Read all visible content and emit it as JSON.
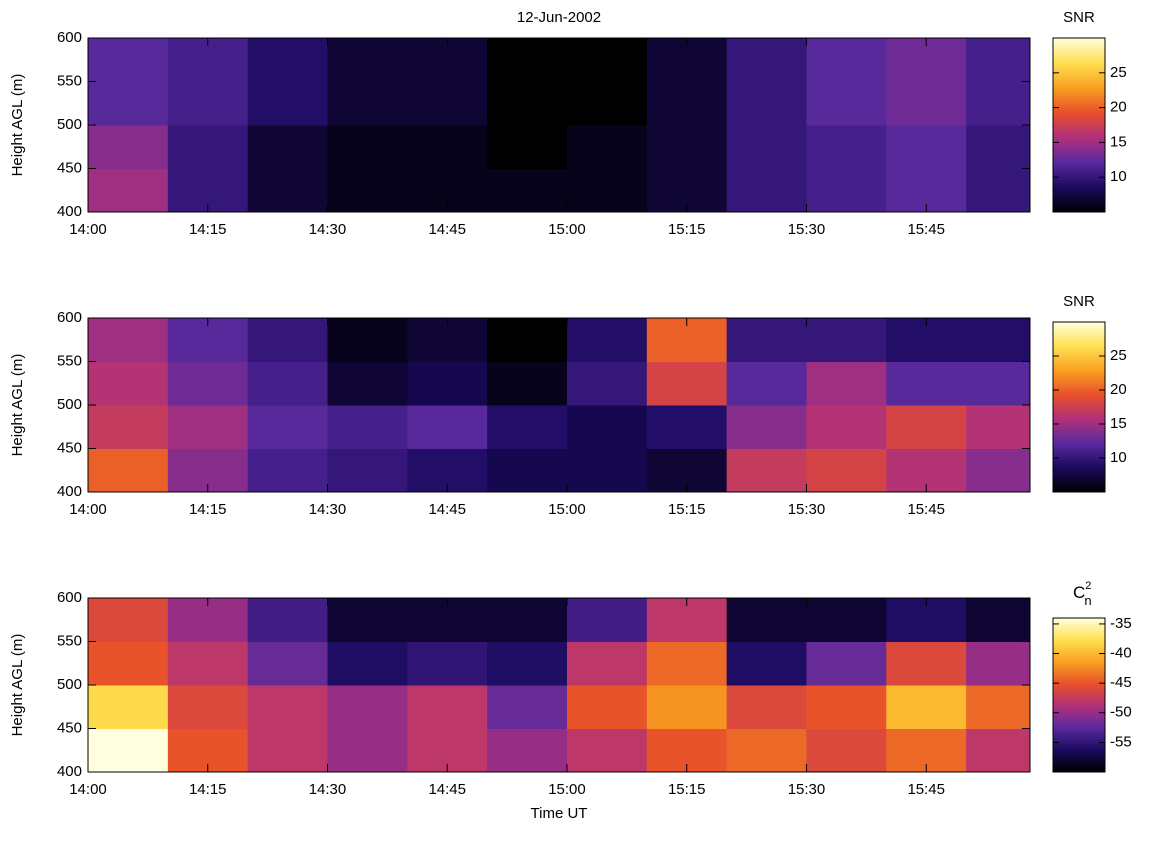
{
  "chart_data": [
    {
      "type": "heatmap",
      "title": "12-Jun-2002",
      "ylabel": "Height AGL (m)",
      "colorbar_label": "SNR",
      "x": [
        "14:00",
        "14:10",
        "14:20",
        "14:30",
        "14:40",
        "14:50",
        "15:00",
        "15:10",
        "15:20",
        "15:30",
        "15:40",
        "15:50"
      ],
      "y": [
        425,
        475,
        525,
        575
      ],
      "values": [
        [
          15,
          10,
          7,
          6,
          6,
          6,
          6,
          7,
          10,
          11,
          12,
          10
        ],
        [
          14,
          10,
          7,
          6,
          6,
          5,
          6,
          7,
          10,
          11,
          12,
          10
        ],
        [
          12,
          11,
          9,
          7,
          7,
          5,
          5,
          7,
          10,
          12,
          13,
          11
        ],
        [
          12,
          11,
          9,
          7,
          7,
          5,
          5,
          7,
          10,
          12,
          13,
          11
        ]
      ],
      "xlim": [
        "14:00",
        "15:58"
      ],
      "xticks": [
        "14:00",
        "14:15",
        "14:30",
        "14:45",
        "15:00",
        "15:15",
        "15:30",
        "15:45"
      ],
      "ylim": [
        400,
        600
      ],
      "yticks": [
        400,
        450,
        500,
        550,
        600
      ],
      "clim": [
        5,
        30
      ],
      "cticks": [
        10,
        15,
        20,
        25
      ],
      "colormap": [
        "#000000",
        "#1a0a5e",
        "#5a2a9e",
        "#b0307a",
        "#e8502a",
        "#f8a020",
        "#ffe050",
        "#ffffe0"
      ]
    },
    {
      "type": "heatmap",
      "ylabel": "Height AGL (m)",
      "colorbar_label": "SNR",
      "x": [
        "14:00",
        "14:10",
        "14:20",
        "14:30",
        "14:40",
        "14:50",
        "15:00",
        "15:10",
        "15:20",
        "15:30",
        "15:40",
        "15:50"
      ],
      "y": [
        425,
        475,
        525,
        575
      ],
      "values": [
        [
          20,
          14,
          11,
          10,
          9,
          8,
          8,
          7,
          17,
          18,
          16,
          14
        ],
        [
          17,
          15,
          12,
          11,
          12,
          9,
          8,
          9,
          14,
          16,
          18,
          16
        ],
        [
          16,
          13,
          11,
          7,
          8,
          6,
          10,
          18,
          12,
          15,
          12,
          12
        ],
        [
          15,
          12,
          10,
          6,
          7,
          5,
          9,
          20,
          10,
          10,
          9,
          9
        ]
      ],
      "xlim": [
        "14:00",
        "15:58"
      ],
      "xticks": [
        "14:00",
        "14:15",
        "14:30",
        "14:45",
        "15:00",
        "15:15",
        "15:30",
        "15:45"
      ],
      "ylim": [
        400,
        600
      ],
      "yticks": [
        400,
        450,
        500,
        550,
        600
      ],
      "clim": [
        5,
        30
      ],
      "cticks": [
        10,
        15,
        20,
        25
      ],
      "colormap": [
        "#000000",
        "#1a0a5e",
        "#5a2a9e",
        "#b0307a",
        "#e8502a",
        "#f8a020",
        "#ffe050",
        "#ffffe0"
      ]
    },
    {
      "type": "heatmap",
      "ylabel": "Height AGL (m)",
      "xlabel": "Time UT",
      "colorbar_label": {
        "base": "C",
        "sub": "n",
        "sup": "2"
      },
      "x": [
        "14:00",
        "14:10",
        "14:20",
        "14:30",
        "14:40",
        "14:50",
        "15:00",
        "15:10",
        "15:20",
        "15:30",
        "15:40",
        "15:50"
      ],
      "y": [
        425,
        475,
        525,
        575
      ],
      "values": [
        [
          -32,
          -45,
          -48,
          -50,
          -48,
          -50,
          -48,
          -45,
          -44,
          -46,
          -44,
          -48
        ],
        [
          -38,
          -46,
          -48,
          -50,
          -48,
          -52,
          -45,
          -42,
          -46,
          -45,
          -40,
          -44
        ],
        [
          -45,
          -48,
          -52,
          -56,
          -55,
          -56,
          -48,
          -44,
          -56,
          -52,
          -46,
          -50
        ],
        [
          -46,
          -50,
          -54,
          -58,
          -58,
          -58,
          -54,
          -48,
          -58,
          -58,
          -56,
          -58
        ]
      ],
      "xlim": [
        "14:00",
        "15:58"
      ],
      "xticks": [
        "14:00",
        "14:15",
        "14:30",
        "14:45",
        "15:00",
        "15:15",
        "15:30",
        "15:45"
      ],
      "ylim": [
        400,
        600
      ],
      "yticks": [
        400,
        450,
        500,
        550,
        600
      ],
      "clim": [
        -60,
        -34
      ],
      "cticks": [
        -55,
        -50,
        -45,
        -40,
        -35
      ],
      "colormap": [
        "#000000",
        "#1a0a5e",
        "#5a2a9e",
        "#b0307a",
        "#e8502a",
        "#f8a020",
        "#ffe050",
        "#ffffe0"
      ]
    }
  ]
}
